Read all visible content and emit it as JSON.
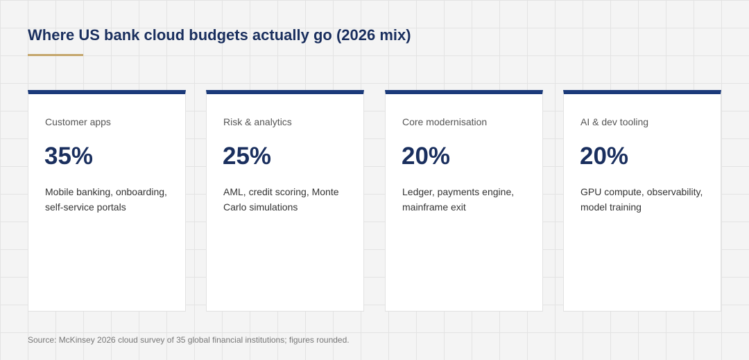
{
  "title": "Where US bank cloud budgets actually go (2026 mix)",
  "cards": [
    {
      "label": "Customer apps",
      "value": "35%",
      "description": "Mobile banking, onboarding, self-service portals"
    },
    {
      "label": "Risk & analytics",
      "value": "25%",
      "description": "AML, credit scoring, Monte Carlo simulations"
    },
    {
      "label": "Core modernisation",
      "value": "20%",
      "description": "Ledger, payments engine, mainframe exit"
    },
    {
      "label": "AI & dev tooling",
      "value": "20%",
      "description": "GPU compute, observability, model training"
    }
  ],
  "footnote": "Source: McKinsey 2026 cloud survey of 35 global financial institutions; figures rounded.",
  "colors": {
    "accent_navy": "#1b3a7a",
    "title_navy": "#1a2f5e",
    "underline_gold": "#c4a66a"
  }
}
